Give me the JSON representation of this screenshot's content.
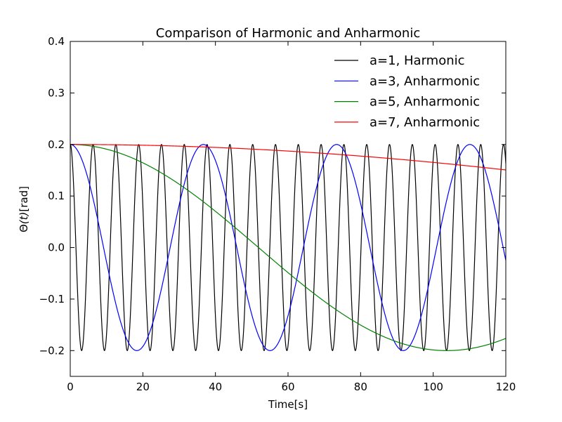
{
  "chart_data": {
    "type": "line",
    "title": "Comparison of Harmonic and Anharmonic",
    "xlabel": "Time[s]",
    "ylabel_main": "Θ",
    "ylabel_arg": "(t)",
    "ylabel_unit": "[rad]",
    "xlim": [
      0,
      120
    ],
    "ylim": [
      -0.25,
      0.4
    ],
    "xticks": [
      0,
      20,
      40,
      60,
      80,
      100,
      120
    ],
    "xtick_labels": [
      "0",
      "20",
      "40",
      "60",
      "80",
      "100",
      "120"
    ],
    "yticks": [
      -0.2,
      -0.1,
      0.0,
      0.1,
      0.2,
      0.3,
      0.4
    ],
    "ytick_labels": [
      "−0.2",
      "−0.1",
      "0.0",
      "0.1",
      "0.2",
      "0.3",
      "0.4"
    ],
    "grid": false,
    "legend_position": "top-right",
    "series": [
      {
        "name": "a=1, Harmonic",
        "color": "#000000",
        "amplitude": 0.2,
        "period": 6.2832,
        "phase": 0
      },
      {
        "name": "a=3, Anharmonic",
        "color": "#0000ff",
        "amplitude": 0.2,
        "period": 36.7,
        "phase": 0
      },
      {
        "name": "a=5, Anharmonic",
        "color": "#008000",
        "amplitude": 0.2,
        "period": 207.5,
        "phase": 0
      },
      {
        "name": "a=7, Anharmonic",
        "color": "#ff0000",
        "amplitude": 0.2,
        "period": 1049.6,
        "phase": 0
      }
    ]
  }
}
